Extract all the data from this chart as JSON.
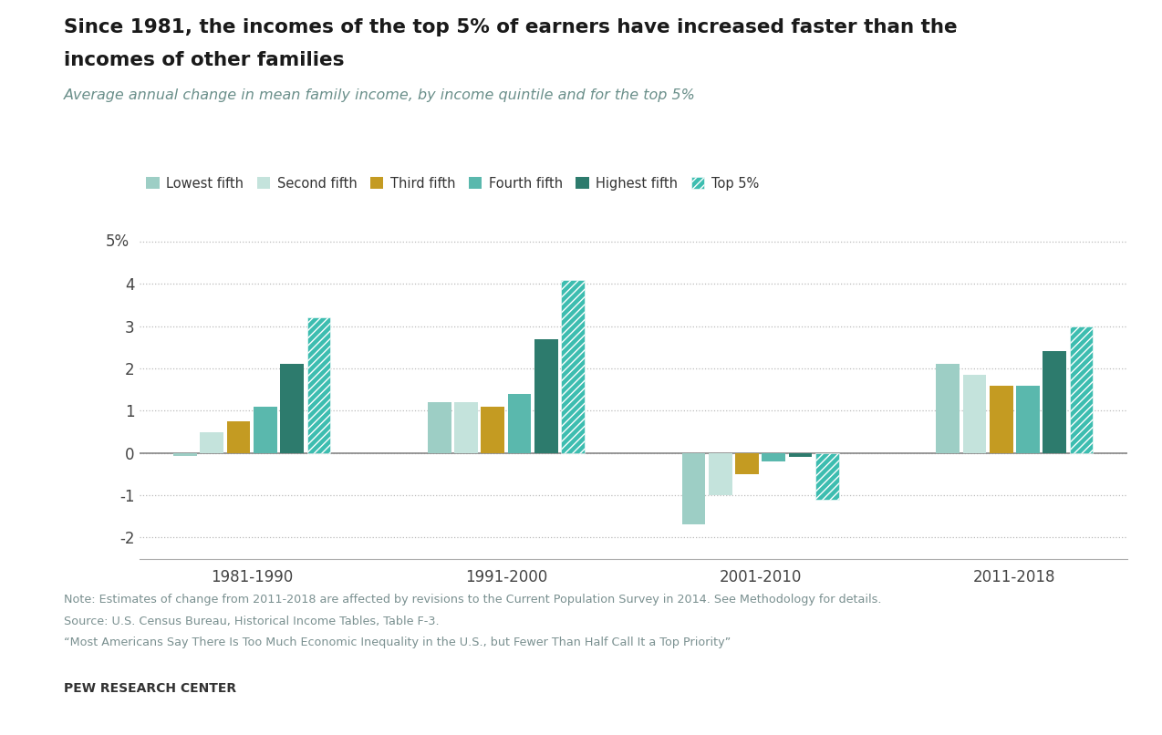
{
  "title_line1": "Since 1981, the incomes of the top 5% of earners have increased faster than the",
  "title_line2": "incomes of other families",
  "subtitle": "Average annual change in mean family income, by income quintile and for the top 5%",
  "periods": [
    "1981-1990",
    "1991-2000",
    "2001-2010",
    "2011-2018"
  ],
  "series_names": [
    "Lowest fifth",
    "Second fifth",
    "Third fifth",
    "Fourth fifth",
    "Highest fifth",
    "Top 5%"
  ],
  "colors": [
    "#9dcec5",
    "#c4e3dc",
    "#c49b22",
    "#5ab8ad",
    "#2d7b6d",
    "#3dbdb0"
  ],
  "data": {
    "Lowest fifth": [
      -0.08,
      1.2,
      -1.7,
      2.1
    ],
    "Second fifth": [
      0.5,
      1.2,
      -1.0,
      1.85
    ],
    "Third fifth": [
      0.75,
      1.1,
      -0.5,
      1.6
    ],
    "Fourth fifth": [
      1.1,
      1.4,
      -0.2,
      1.6
    ],
    "Highest fifth": [
      2.1,
      2.7,
      -0.1,
      2.4
    ],
    "Top 5%": [
      3.2,
      4.1,
      -1.1,
      3.0
    ]
  },
  "ylim": [
    -2.5,
    5.5
  ],
  "yticks": [
    -2,
    -1,
    0,
    1,
    2,
    3,
    4
  ],
  "background_color": "#ffffff",
  "note_line1": "Note: Estimates of change from 2011-2018 are affected by revisions to the Current Population Survey in 2014. See Methodology for details.",
  "note_line2": "Source: U.S. Census Bureau, Historical Income Tables, Table F-3.",
  "note_line3": "“Most Americans Say There Is Too Much Economic Inequality in the U.S., but Fewer Than Half Call It a Top Priority”",
  "footer": "PEW RESEARCH CENTER",
  "title_color": "#1a1a1a",
  "subtitle_color": "#6a8f8a",
  "note_color": "#7a9090",
  "footer_color": "#333333"
}
